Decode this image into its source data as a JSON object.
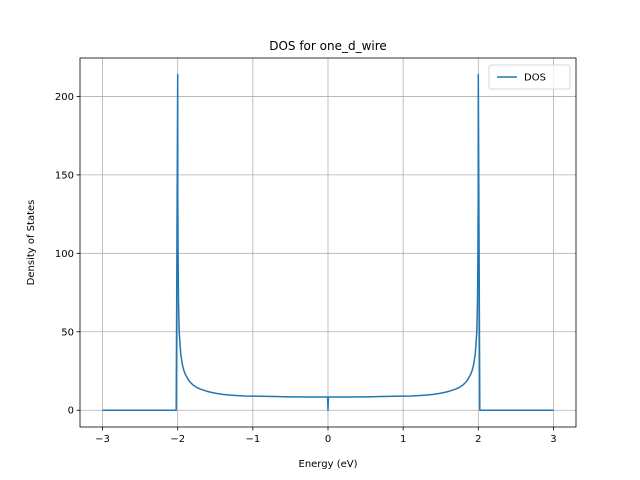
{
  "chart_data": {
    "type": "line",
    "title": "DOS for one_d_wire",
    "xlabel": "Energy (eV)",
    "ylabel": "Density of States",
    "xlim": [
      -3.3,
      3.3
    ],
    "ylim": [
      -10.7,
      224.5
    ],
    "xticks": [
      -3,
      -2,
      -1,
      0,
      1,
      2,
      3
    ],
    "xtick_labels": [
      "−3",
      "−2",
      "−1",
      "0",
      "1",
      "2",
      "3"
    ],
    "yticks": [
      0,
      50,
      100,
      150,
      200
    ],
    "ytick_labels": [
      "0",
      "50",
      "100",
      "150",
      "200"
    ],
    "grid": true,
    "legend_position": "top-right",
    "series": [
      {
        "name": "DOS",
        "color": "#1f77b4",
        "x": [
          -3.0,
          -2.02,
          -2.0,
          -1.999,
          -1.995,
          -1.99,
          -1.98,
          -1.96,
          -1.94,
          -1.92,
          -1.9,
          -1.85,
          -1.8,
          -1.75,
          -1.7,
          -1.6,
          -1.5,
          -1.4,
          -1.3,
          -1.2,
          -1.1,
          -1.0,
          -0.9,
          -0.8,
          -0.7,
          -0.6,
          -0.5,
          -0.4,
          -0.3,
          -0.2,
          -0.1,
          -0.02,
          -0.005,
          0.0,
          0.005,
          0.02,
          0.1,
          0.2,
          0.3,
          0.4,
          0.5,
          0.6,
          0.7,
          0.8,
          0.9,
          1.0,
          1.1,
          1.2,
          1.3,
          1.4,
          1.5,
          1.6,
          1.7,
          1.75,
          1.8,
          1.85,
          1.9,
          1.92,
          1.94,
          1.96,
          1.98,
          1.99,
          1.995,
          1.999,
          2.0,
          2.02,
          3.0
        ],
        "y": [
          0,
          0,
          214,
          140,
          101,
          71,
          50,
          36,
          29.5,
          25.6,
          23,
          18.8,
          16.2,
          14.6,
          13.5,
          11.9,
          10.8,
          10.1,
          9.6,
          9.3,
          9.1,
          9.0,
          8.9,
          8.8,
          8.7,
          8.6,
          8.5,
          8.5,
          8.4,
          8.4,
          8.4,
          8.4,
          8.4,
          0,
          8.4,
          8.4,
          8.4,
          8.4,
          8.4,
          8.5,
          8.5,
          8.6,
          8.7,
          8.8,
          8.9,
          9.0,
          9.1,
          9.3,
          9.6,
          10.1,
          10.8,
          11.9,
          13.5,
          14.6,
          16.2,
          18.8,
          23,
          25.6,
          29.5,
          36,
          50,
          71,
          101,
          140,
          214,
          0,
          0
        ]
      }
    ]
  }
}
